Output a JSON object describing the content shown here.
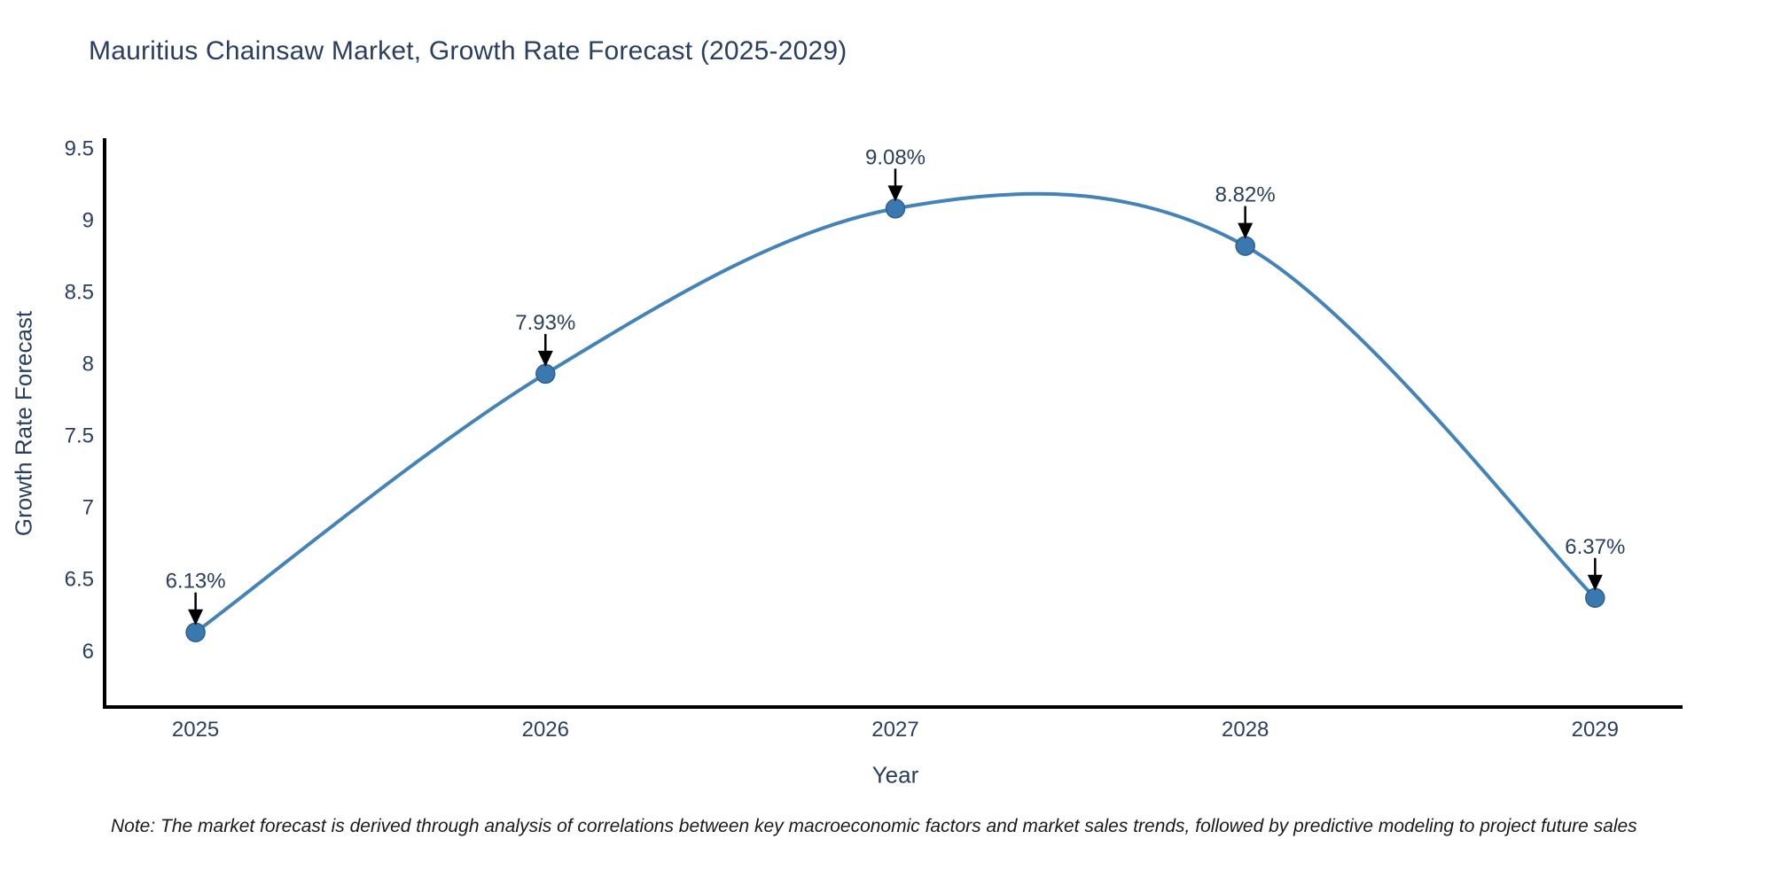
{
  "chart_data": {
    "type": "line",
    "title": "Mauritius Chainsaw Market, Growth Rate Forecast (2025-2029)",
    "xlabel": "Year",
    "ylabel": "Growth Rate Forecast",
    "x": [
      2025,
      2026,
      2027,
      2028,
      2029
    ],
    "values": [
      6.13,
      7.93,
      9.08,
      8.82,
      6.37
    ],
    "point_labels": [
      "6.13%",
      "7.93%",
      "9.08%",
      "8.82%",
      "6.37%"
    ],
    "series_name": "Growth Rate Forecast",
    "yticks": [
      6,
      6.5,
      7,
      7.5,
      8,
      8.5,
      9,
      9.5
    ],
    "ylim": [
      5.61,
      9.57
    ],
    "xlim": [
      2024.74,
      2029.25
    ],
    "grid": false,
    "legend": false,
    "line_shape": "spline",
    "colors": {
      "line": "#4383b8",
      "marker": "#3a78b0",
      "marker_edge": "#2d608f",
      "annotation_arrow": "#000000",
      "axis": "#000000",
      "text": "#2a3f5f"
    }
  },
  "footnote": "Note: The market forecast is derived through analysis of correlations between key macroeconomic factors and market sales trends, followed by predictive modeling to project future sales"
}
